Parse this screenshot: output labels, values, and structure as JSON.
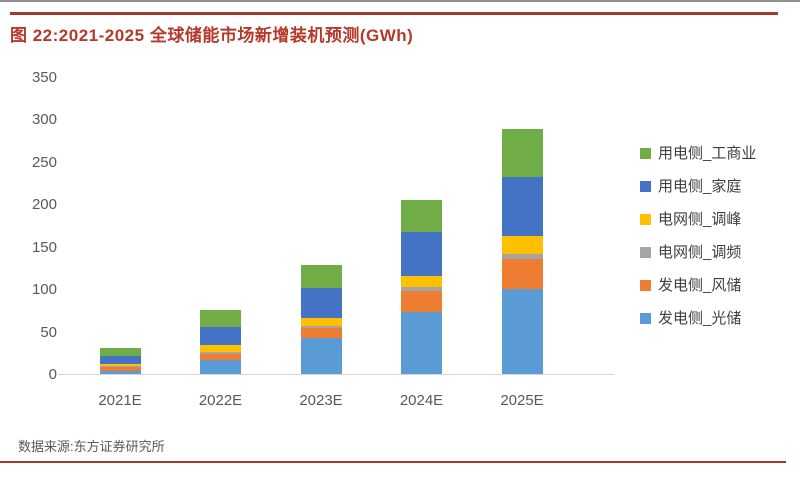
{
  "page": {
    "title": "图 22:2021-2025 全球储能市场新增装机预测(GWh)",
    "title_color": "#b5392b",
    "accent_rule_color": "#a23a2f"
  },
  "chart_data": {
    "type": "bar",
    "stacked": true,
    "title": "2021-2025 全球储能市场新增装机预测(GWh)",
    "categories": [
      "2021E",
      "2022E",
      "2023E",
      "2024E",
      "2025E"
    ],
    "series": [
      {
        "name": "发电侧_光储",
        "color": "#5B9BD5",
        "values": [
          4,
          16,
          43,
          73,
          100
        ]
      },
      {
        "name": "发电侧_风储",
        "color": "#ED7D31",
        "values": [
          4,
          8,
          11,
          25,
          36
        ]
      },
      {
        "name": "电网侧_调频",
        "color": "#A5A5A5",
        "values": [
          1,
          2,
          3,
          5,
          5
        ]
      },
      {
        "name": "电网侧_调峰",
        "color": "#FFC000",
        "values": [
          3,
          8,
          9,
          12,
          22
        ]
      },
      {
        "name": "用电侧_家庭",
        "color": "#4472C4",
        "values": [
          9,
          21,
          35,
          52,
          69
        ]
      },
      {
        "name": "用电侧_工商业",
        "color": "#70AD47",
        "values": [
          10,
          20,
          28,
          38,
          57
        ]
      }
    ],
    "stack_order": "bottom-to-top",
    "totals": [
      31,
      75,
      129,
      205,
      289
    ],
    "legend_order_top_to_bottom": [
      "用电侧_工商业",
      "用电侧_家庭",
      "电网侧_调峰",
      "电网侧_调频",
      "发电侧_风储",
      "发电侧_光储"
    ],
    "legend_position": "right",
    "xlabel": "",
    "ylabel": "",
    "ylim": [
      0,
      350
    ],
    "yticks": [
      0,
      50,
      100,
      150,
      200,
      250,
      300,
      350
    ],
    "grid": false
  },
  "footer": {
    "source": "数据来源:东方证券研究所"
  }
}
